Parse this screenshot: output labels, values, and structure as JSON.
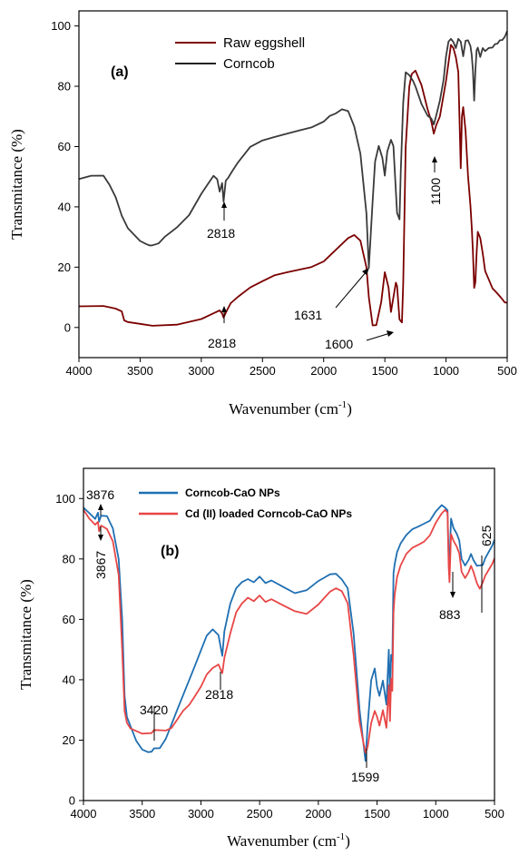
{
  "chart_data": [
    {
      "type": "line",
      "panel_label": "(a)",
      "xlabel": "Wavenumber (cm",
      "xlabel_sup": "-1",
      "xlabel_suffix": ")",
      "ylabel": "Transmitance (%)",
      "xlim": [
        4000,
        500
      ],
      "ylim": [
        -10,
        105
      ],
      "x_ticks": [
        4000,
        3500,
        3000,
        2500,
        2000,
        1500,
        1000,
        500
      ],
      "y_ticks": [
        0,
        20,
        40,
        60,
        80,
        100
      ],
      "legend_position": "top-center",
      "series": [
        {
          "name": "Raw eggshell",
          "color": "#7b0000",
          "x": [
            4000,
            3800,
            3700,
            3650,
            3630,
            3600,
            3500,
            3400,
            3200,
            3000,
            2900,
            2850,
            2830,
            2818,
            2800,
            2760,
            2700,
            2600,
            2500,
            2400,
            2300,
            2200,
            2100,
            2000,
            1900,
            1850,
            1800,
            1750,
            1700,
            1650,
            1631,
            1600,
            1570,
            1530,
            1500,
            1470,
            1450,
            1430,
            1410,
            1400,
            1380,
            1360,
            1350,
            1330,
            1300,
            1280,
            1250,
            1200,
            1150,
            1120,
            1100,
            1080,
            1050,
            1000,
            960,
            940,
            920,
            900,
            880,
            870,
            860,
            840,
            820,
            800,
            790,
            780,
            770,
            760,
            750,
            740,
            720,
            700,
            680,
            650,
            620,
            600,
            580,
            560,
            540,
            520,
            500
          ],
          "y": [
            7,
            7,
            6,
            5,
            2,
            1.5,
            1,
            0.5,
            1,
            3,
            5,
            6,
            5,
            3.5,
            5,
            8,
            10,
            13,
            15,
            17,
            18,
            19,
            20,
            22,
            26,
            28,
            30,
            31,
            29,
            20,
            10,
            0.5,
            0.5,
            8,
            18,
            13,
            5,
            10,
            15,
            14,
            3,
            2,
            15,
            60,
            80,
            84,
            85,
            80,
            72,
            68,
            64,
            67,
            70,
            82,
            94,
            93,
            90,
            85,
            53,
            70,
            73,
            65,
            50,
            40,
            33,
            25,
            13,
            15,
            25,
            32,
            30,
            25,
            19,
            16,
            13,
            12,
            11,
            10,
            9,
            8,
            8
          ]
        },
        {
          "name": "Corncob",
          "color": "#3a3a3a",
          "x": [
            4000,
            3900,
            3800,
            3750,
            3700,
            3650,
            3600,
            3550,
            3500,
            3450,
            3420,
            3400,
            3350,
            3300,
            3200,
            3100,
            3000,
            2950,
            2900,
            2870,
            2850,
            2830,
            2818,
            2800,
            2780,
            2750,
            2700,
            2600,
            2500,
            2400,
            2300,
            2200,
            2100,
            2000,
            1950,
            1900,
            1850,
            1800,
            1750,
            1700,
            1650,
            1631,
            1600,
            1580,
            1550,
            1520,
            1500,
            1480,
            1450,
            1430,
            1400,
            1380,
            1370,
            1350,
            1330,
            1300,
            1270,
            1250,
            1200,
            1150,
            1120,
            1100,
            1080,
            1050,
            1020,
            1000,
            980,
            960,
            940,
            920,
            900,
            880,
            860,
            840,
            820,
            800,
            790,
            780,
            770,
            760,
            750,
            740,
            720,
            700,
            680,
            650,
            620,
            600,
            580,
            560,
            540,
            520,
            500
          ],
          "y": [
            49,
            50,
            50,
            47,
            43,
            37,
            33,
            31,
            29,
            28,
            27.5,
            27.5,
            28,
            30,
            33,
            37,
            44,
            47,
            50,
            49,
            45,
            48,
            42,
            49,
            50,
            52,
            55,
            60,
            62,
            63,
            64,
            65,
            66,
            68,
            70,
            71,
            72.5,
            72,
            67,
            58,
            38,
            20,
            42,
            55,
            60,
            56,
            50,
            58,
            62,
            60,
            38,
            36,
            52,
            75,
            85,
            84,
            82,
            80,
            74,
            70,
            69,
            67,
            70,
            75,
            82,
            90,
            95,
            96,
            95,
            93,
            96,
            95,
            90,
            95,
            95,
            93,
            90,
            85,
            75,
            85,
            92,
            93,
            90,
            93,
            92,
            93,
            93,
            94,
            94,
            95,
            95,
            96,
            98
          ]
        }
      ],
      "annotations": [
        "2818",
        "2818",
        "1631",
        "1600",
        "1100"
      ]
    },
    {
      "type": "line",
      "panel_label": "(b)",
      "xlabel": "Wavenumber (cm",
      "xlabel_sup": "-1",
      "xlabel_suffix": ")",
      "ylabel": "Transmitance (%)",
      "xlim": [
        4000,
        500
      ],
      "ylim": [
        0,
        110
      ],
      "x_ticks": [
        4000,
        3500,
        3000,
        2500,
        2000,
        1500,
        1000,
        500
      ],
      "y_ticks": [
        0,
        20,
        40,
        60,
        80,
        100
      ],
      "legend_position": "top-center",
      "series": [
        {
          "name": "Corncob-CaO NPs",
          "color": "#1f6fb2",
          "x": [
            4000,
            3950,
            3900,
            3876,
            3867,
            3850,
            3800,
            3750,
            3700,
            3670,
            3650,
            3630,
            3600,
            3550,
            3500,
            3450,
            3420,
            3400,
            3350,
            3300,
            3250,
            3200,
            3150,
            3100,
            3050,
            3000,
            2950,
            2900,
            2850,
            2818,
            2800,
            2750,
            2700,
            2650,
            2600,
            2550,
            2500,
            2450,
            2400,
            2300,
            2200,
            2100,
            2000,
            1950,
            1900,
            1850,
            1800,
            1750,
            1700,
            1650,
            1620,
            1599,
            1580,
            1550,
            1520,
            1500,
            1480,
            1450,
            1420,
            1400,
            1390,
            1380,
            1370,
            1360,
            1350,
            1330,
            1300,
            1250,
            1200,
            1150,
            1100,
            1050,
            1000,
            950,
            920,
            900,
            890,
            883,
            870,
            850,
            820,
            800,
            780,
            750,
            720,
            700,
            680,
            650,
            625,
            600,
            580,
            550,
            520,
            500
          ],
          "y": [
            97,
            95,
            93,
            95,
            92,
            94,
            94,
            90,
            80,
            60,
            35,
            28,
            25,
            20,
            17,
            16,
            16,
            17,
            17,
            20,
            25,
            30,
            35,
            40,
            45,
            50,
            55,
            57,
            55,
            48,
            56,
            65,
            70,
            72,
            73,
            72,
            74,
            72,
            73,
            71,
            69,
            70,
            73,
            74,
            75,
            75,
            73,
            70,
            55,
            30,
            20,
            13,
            25,
            40,
            44,
            38,
            35,
            40,
            32,
            50,
            35,
            48,
            46,
            75,
            78,
            82,
            85,
            88,
            90,
            91,
            92,
            93,
            96,
            98,
            97,
            96,
            80,
            78,
            93,
            90,
            88,
            86,
            80,
            78,
            80,
            82,
            80,
            78,
            78,
            78,
            80,
            82,
            84,
            86
          ]
        },
        {
          "name": "Cd (II) loaded Corncob-CaO NPs",
          "color": "#e84646",
          "x": [
            4000,
            3950,
            3900,
            3876,
            3867,
            3850,
            3800,
            3750,
            3700,
            3670,
            3650,
            3630,
            3600,
            3550,
            3500,
            3450,
            3420,
            3400,
            3350,
            3300,
            3250,
            3200,
            3150,
            3100,
            3050,
            3000,
            2950,
            2900,
            2850,
            2818,
            2800,
            2750,
            2700,
            2650,
            2600,
            2550,
            2500,
            2450,
            2400,
            2300,
            2200,
            2100,
            2000,
            1950,
            1900,
            1850,
            1800,
            1750,
            1700,
            1650,
            1620,
            1599,
            1580,
            1550,
            1520,
            1500,
            1480,
            1450,
            1420,
            1400,
            1390,
            1380,
            1370,
            1360,
            1350,
            1330,
            1300,
            1250,
            1200,
            1150,
            1100,
            1050,
            1000,
            950,
            920,
            900,
            890,
            883,
            870,
            850,
            820,
            800,
            780,
            750,
            720,
            700,
            680,
            650,
            625,
            600,
            580,
            550,
            520,
            500
          ],
          "y": [
            96,
            93,
            91,
            92,
            89,
            91,
            90,
            86,
            75,
            50,
            30,
            26,
            24,
            23,
            22,
            22,
            22,
            23,
            23,
            23,
            24,
            27,
            30,
            32,
            35,
            38,
            42,
            44,
            45,
            42,
            47,
            55,
            62,
            65,
            67,
            66,
            68,
            66,
            67,
            65,
            63,
            62,
            65,
            67,
            69,
            70,
            69,
            65,
            48,
            26,
            20,
            16,
            18,
            26,
            30,
            28,
            25,
            30,
            24,
            38,
            26,
            40,
            36,
            62,
            68,
            74,
            78,
            82,
            84,
            85,
            86,
            88,
            92,
            95,
            96,
            95,
            77,
            72,
            88,
            86,
            84,
            82,
            76,
            74,
            76,
            78,
            76,
            72,
            70,
            72,
            74,
            76,
            78,
            80
          ]
        }
      ],
      "annotations": [
        "3876",
        "3867",
        "3420",
        "2818",
        "1599",
        "883",
        "625"
      ]
    }
  ]
}
